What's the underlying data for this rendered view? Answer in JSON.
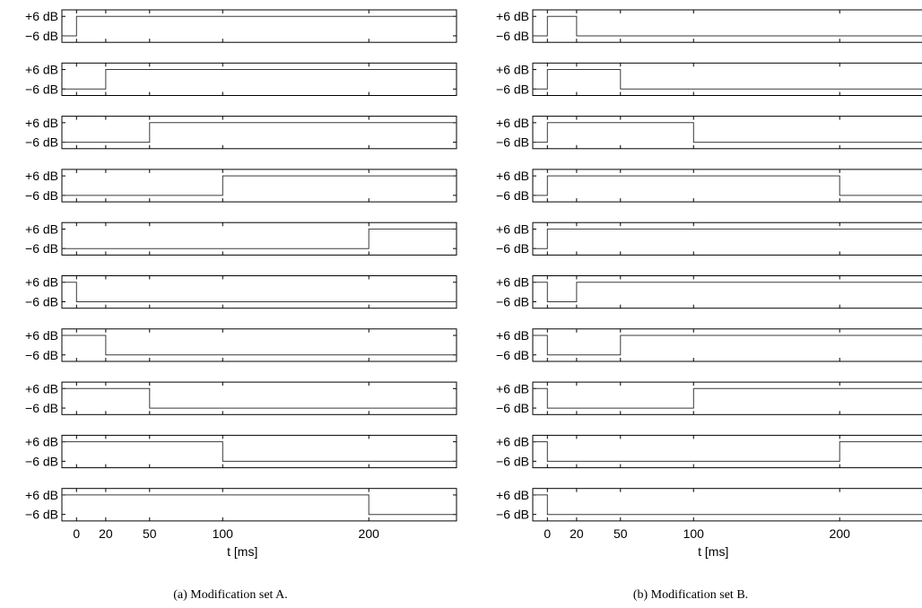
{
  "figure": {
    "captions": [
      "(a)  Modification set A.",
      "(b)  Modification set B."
    ]
  },
  "chart_data": [
    {
      "type": "line",
      "step": "post",
      "caption": "(a)  Modification set A.",
      "xlabel": "t [ms]",
      "xlim": [
        -10,
        260
      ],
      "xticks": [
        0,
        20,
        50,
        100,
        200
      ],
      "ylim": [
        -10,
        10
      ],
      "yticks": [
        6,
        -6
      ],
      "ytick_labels": [
        "+6 dB",
        "−6 dB"
      ],
      "grid": false,
      "subplots": [
        {
          "x": [
            -10,
            0,
            0,
            260
          ],
          "y": [
            -6,
            -6,
            6,
            6
          ]
        },
        {
          "x": [
            -10,
            20,
            20,
            260
          ],
          "y": [
            -6,
            -6,
            6,
            6
          ]
        },
        {
          "x": [
            -10,
            50,
            50,
            260
          ],
          "y": [
            -6,
            -6,
            6,
            6
          ]
        },
        {
          "x": [
            -10,
            100,
            100,
            260
          ],
          "y": [
            -6,
            -6,
            6,
            6
          ]
        },
        {
          "x": [
            -10,
            200,
            200,
            260
          ],
          "y": [
            -6,
            -6,
            6,
            6
          ]
        },
        {
          "x": [
            -10,
            0,
            0,
            260
          ],
          "y": [
            6,
            6,
            -6,
            -6
          ]
        },
        {
          "x": [
            -10,
            20,
            20,
            260
          ],
          "y": [
            6,
            6,
            -6,
            -6
          ]
        },
        {
          "x": [
            -10,
            50,
            50,
            260
          ],
          "y": [
            6,
            6,
            -6,
            -6
          ]
        },
        {
          "x": [
            -10,
            100,
            100,
            260
          ],
          "y": [
            6,
            6,
            -6,
            -6
          ]
        },
        {
          "x": [
            -10,
            200,
            200,
            260
          ],
          "y": [
            6,
            6,
            -6,
            -6
          ]
        }
      ]
    },
    {
      "type": "line",
      "step": "post",
      "caption": "(b)  Modification set B.",
      "xlabel": "t [ms]",
      "xlim": [
        -10,
        260
      ],
      "xticks": [
        0,
        20,
        50,
        100,
        200
      ],
      "ylim": [
        -10,
        10
      ],
      "yticks": [
        6,
        -6
      ],
      "ytick_labels": [
        "+6 dB",
        "−6 dB"
      ],
      "grid": false,
      "subplots": [
        {
          "x": [
            -10,
            0,
            0,
            20,
            20,
            260
          ],
          "y": [
            -6,
            -6,
            6,
            6,
            -6,
            -6
          ]
        },
        {
          "x": [
            -10,
            0,
            0,
            50,
            50,
            260
          ],
          "y": [
            -6,
            -6,
            6,
            6,
            -6,
            -6
          ]
        },
        {
          "x": [
            -10,
            0,
            0,
            100,
            100,
            260
          ],
          "y": [
            -6,
            -6,
            6,
            6,
            -6,
            -6
          ]
        },
        {
          "x": [
            -10,
            0,
            0,
            200,
            200,
            260
          ],
          "y": [
            -6,
            -6,
            6,
            6,
            -6,
            -6
          ]
        },
        {
          "x": [
            -10,
            0,
            0,
            260
          ],
          "y": [
            -6,
            -6,
            6,
            6
          ]
        },
        {
          "x": [
            -10,
            0,
            0,
            20,
            20,
            260
          ],
          "y": [
            6,
            6,
            -6,
            -6,
            6,
            6
          ]
        },
        {
          "x": [
            -10,
            0,
            0,
            50,
            50,
            260
          ],
          "y": [
            6,
            6,
            -6,
            -6,
            6,
            6
          ]
        },
        {
          "x": [
            -10,
            0,
            0,
            100,
            100,
            260
          ],
          "y": [
            6,
            6,
            -6,
            -6,
            6,
            6
          ]
        },
        {
          "x": [
            -10,
            0,
            0,
            200,
            200,
            260
          ],
          "y": [
            6,
            6,
            -6,
            -6,
            6,
            6
          ]
        },
        {
          "x": [
            -10,
            0,
            0,
            260
          ],
          "y": [
            6,
            6,
            -6,
            -6
          ]
        }
      ]
    }
  ]
}
